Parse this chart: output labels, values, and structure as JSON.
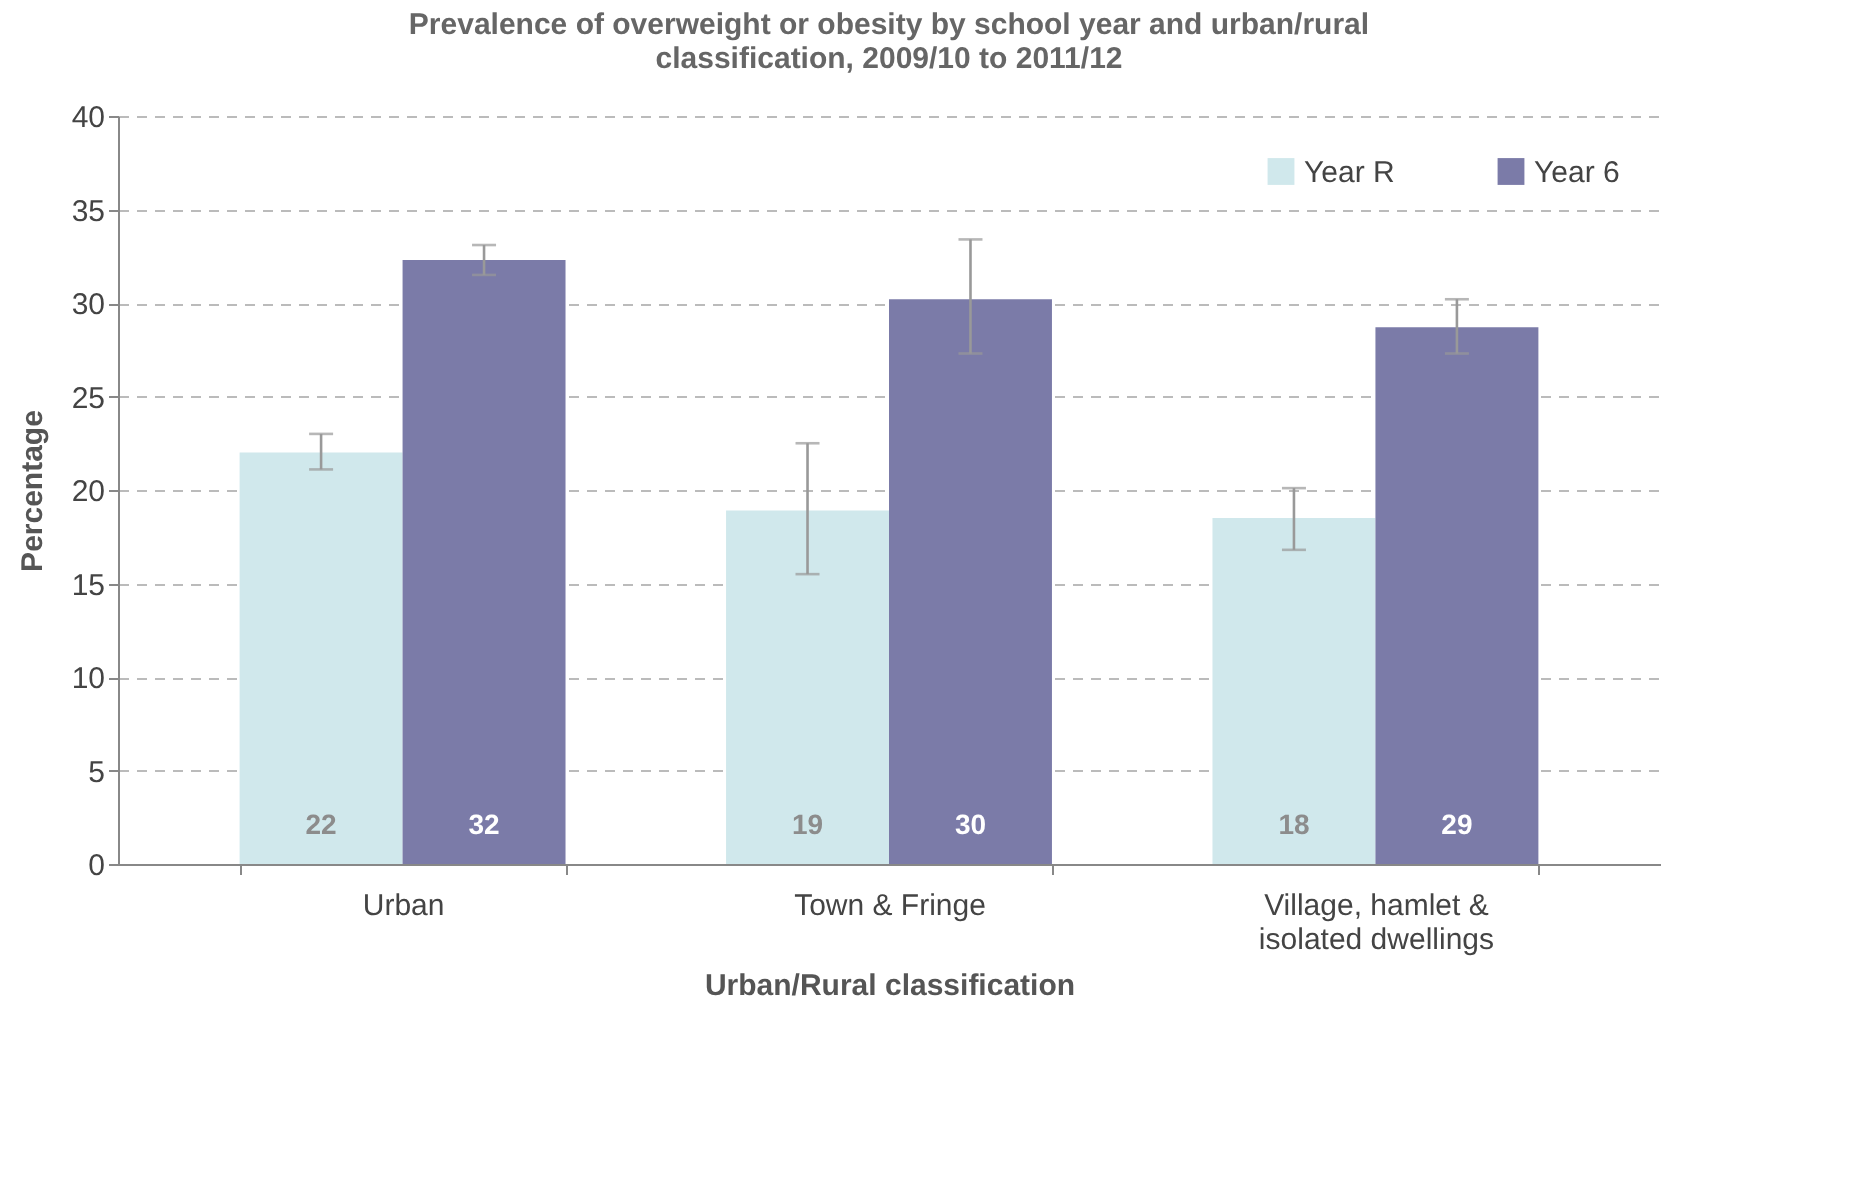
{
  "chart_data": {
    "type": "bar",
    "title": "Prevalence of overweight or obesity by school year and urban/rural classification, 2009/10 to 2011/12",
    "xlabel": "Urban/Rural classification",
    "ylabel": "Percentage",
    "categories": [
      "Urban",
      "Town & Fringe",
      "Village, hamlet & isolated dwellings"
    ],
    "series": [
      {
        "name": "Year R",
        "color": "#d0e8ec",
        "values": [
          22.0,
          18.9,
          18.5
        ],
        "value_labels": [
          "22",
          "19",
          "18"
        ],
        "errors": [
          [
            21.1,
            23.0
          ],
          [
            15.5,
            22.5
          ],
          [
            16.8,
            20.1
          ]
        ]
      },
      {
        "name": "Year 6",
        "color": "#7b7ba8",
        "values": [
          32.3,
          30.2,
          28.7
        ],
        "value_labels": [
          "32",
          "30",
          "29"
        ],
        "errors": [
          [
            31.5,
            33.1
          ],
          [
            27.3,
            33.4
          ],
          [
            27.3,
            30.2
          ]
        ]
      }
    ],
    "ylim": [
      0,
      40
    ],
    "yticks": [
      0,
      5,
      10,
      15,
      20,
      25,
      30,
      35,
      40
    ],
    "grid": "y",
    "legend": "top right"
  }
}
